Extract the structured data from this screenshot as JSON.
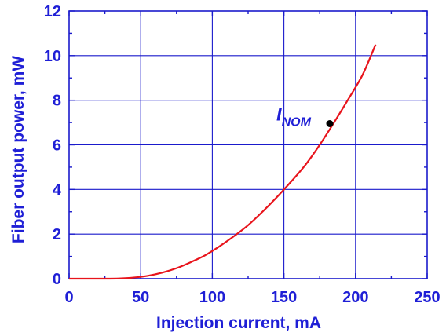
{
  "chart_data": {
    "type": "line",
    "xlabel": "Injection current, mA",
    "ylabel": "Fiber output power, mW",
    "xlim": [
      0,
      250
    ],
    "ylim": [
      0,
      12
    ],
    "xticks": [
      0,
      50,
      100,
      150,
      200,
      250
    ],
    "yticks": [
      0,
      2,
      4,
      6,
      8,
      10,
      12
    ],
    "xtick_labels": [
      "0",
      "50",
      "100",
      "150",
      "200",
      "250"
    ],
    "ytick_labels": [
      "0",
      "2",
      "4",
      "6",
      "8",
      "10",
      "12"
    ],
    "grid": true,
    "series": [
      {
        "color": "#e8141c",
        "x": [
          0,
          25,
          35,
          45,
          55,
          65,
          75,
          85,
          95,
          105,
          115,
          125,
          135,
          145,
          155,
          165,
          175,
          185,
          195,
          205,
          214
        ],
        "y": [
          0,
          0,
          0.01,
          0.05,
          0.13,
          0.27,
          0.47,
          0.74,
          1.05,
          1.45,
          1.9,
          2.4,
          3.0,
          3.65,
          4.35,
          5.1,
          6.0,
          7.0,
          8.05,
          9.15,
          10.5
        ]
      }
    ],
    "annotations": [
      {
        "label_main": "I",
        "label_sub": "NOM",
        "x": 182,
        "y": 6.95,
        "color": "#000000"
      }
    ],
    "colors": {
      "axis": "#1a1acc",
      "grid": "#1a1acc",
      "text": "#1f1fd6",
      "annotation_text": "#1f1fd6"
    }
  }
}
